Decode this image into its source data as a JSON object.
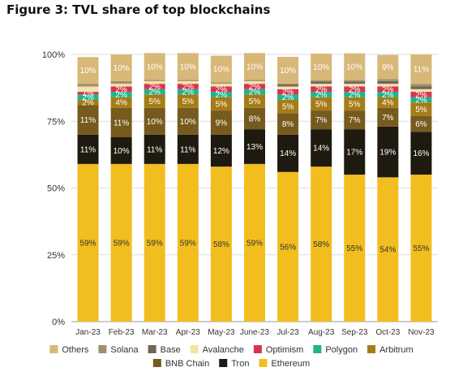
{
  "title": "Figure 3: TVL share of top blockchains",
  "chart_data": {
    "type": "bar",
    "stacked": true,
    "categories": [
      "Jan-23",
      "Feb-23",
      "Mar-23",
      "Apr-23",
      "May-23",
      "June-23",
      "Jul-23",
      "Aug-23",
      "Sep-23",
      "Oct-23",
      "Nov-23"
    ],
    "ylim": [
      0,
      100
    ],
    "yticks": [
      "0%",
      "25%",
      "50%",
      "75%",
      "100%"
    ],
    "legend_position": "bottom",
    "series": [
      {
        "name": "Ethereum",
        "color": "#f2bd1f",
        "labelColor": "#333333",
        "values": [
          59,
          59,
          59,
          59,
          58,
          59,
          56,
          58,
          55,
          54,
          55
        ]
      },
      {
        "name": "Tron",
        "color": "#1f1a10",
        "labelColor": "#ffffff",
        "values": [
          11,
          10,
          11,
          11,
          12,
          13,
          14,
          14,
          17,
          19,
          16
        ]
      },
      {
        "name": "BNB Chain",
        "color": "#765a1e",
        "labelColor": "#ffffff",
        "values": [
          11,
          11,
          10,
          10,
          9,
          8,
          8,
          7,
          7,
          7,
          6
        ]
      },
      {
        "name": "Arbitrum",
        "color": "#a57c16",
        "labelColor": "#ffffff",
        "values": [
          2,
          4,
          5,
          5,
          5,
          5,
          5,
          5,
          5,
          4,
          5
        ]
      },
      {
        "name": "Polygon",
        "color": "#21b38a",
        "labelColor": "#ffffff",
        "values": [
          2,
          2,
          2,
          2,
          2,
          2,
          2,
          2,
          2,
          2,
          2
        ]
      },
      {
        "name": "Optimism",
        "color": "#d8344e",
        "labelColor": "#ffffff",
        "values": [
          1,
          2,
          2,
          2,
          2,
          2,
          2,
          2,
          2,
          2,
          2
        ]
      },
      {
        "name": "Avalanche",
        "color": "#f4e3a6",
        "labelColor": "#333333",
        "values": [
          2,
          1,
          1,
          1,
          1,
          1,
          1,
          1,
          1,
          1,
          1
        ]
      },
      {
        "name": "Base",
        "color": "#6f6659",
        "labelColor": "#ffffff",
        "values": [
          0,
          0,
          0,
          0,
          0,
          0,
          0.6,
          0.8,
          0.9,
          1,
          1
        ]
      },
      {
        "name": "Solana",
        "color": "#a08e70",
        "labelColor": "#ffffff",
        "values": [
          1,
          1,
          0.5,
          0.5,
          0.5,
          0.5,
          0.5,
          0.5,
          0.5,
          0.8,
          1
        ]
      },
      {
        "name": "Others",
        "color": "#d8b878",
        "labelColor": "#ffffff",
        "values": [
          10,
          10,
          10,
          10,
          10,
          10,
          10,
          10,
          10,
          9,
          11
        ]
      }
    ],
    "labeled_series": [
      "Ethereum",
      "Tron",
      "BNB Chain",
      "Arbitrum",
      "Polygon",
      "Optimism",
      "Others"
    ],
    "legend_order": [
      "Others",
      "Solana",
      "Base",
      "Avalanche",
      "Optimism",
      "Polygon",
      "Arbitrum",
      "BNB Chain",
      "Tron",
      "Ethereum"
    ]
  }
}
